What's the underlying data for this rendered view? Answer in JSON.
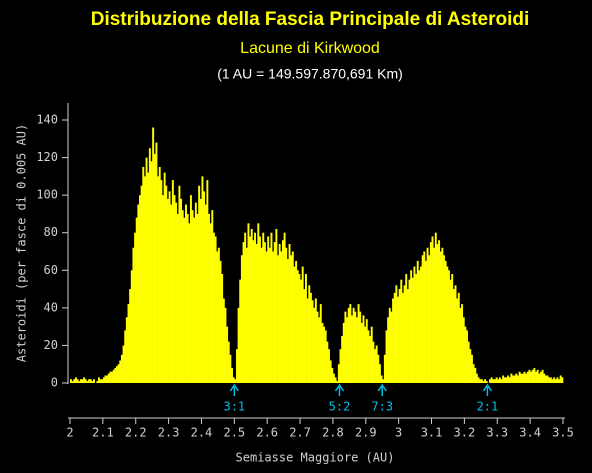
{
  "chart_data": {
    "type": "histogram",
    "title": "Distribuzione della Fascia Principale di Asteroidi",
    "subtitle": "Lacune di Kirkwood",
    "note": "(1 AU = 149.597.870,691 Km)",
    "x_label": "Semiasse Maggiore (AU)",
    "y_label": "Asteroidi (per fasce di 0.005 AU)",
    "color": "#ffff00",
    "bins": [
      2,
      2.005,
      2.01,
      2.015,
      2.02,
      2.025,
      2.03,
      2.035,
      2.04,
      2.045,
      2.05,
      2.055,
      2.06,
      2.065,
      2.07,
      2.075,
      2.08,
      2.085,
      2.09,
      2.095,
      2.1,
      2.105,
      2.11,
      2.115,
      2.12,
      2.125,
      2.13,
      2.135,
      2.14,
      2.145,
      2.15,
      2.155,
      2.16,
      2.165,
      2.17,
      2.175,
      2.18,
      2.185,
      2.19,
      2.195,
      2.2,
      2.205,
      2.21,
      2.215,
      2.22,
      2.225,
      2.23,
      2.235,
      2.24,
      2.245,
      2.25,
      2.255,
      2.26,
      2.265,
      2.27,
      2.275,
      2.28,
      2.285,
      2.29,
      2.295,
      2.3,
      2.305,
      2.31,
      2.315,
      2.32,
      2.325,
      2.33,
      2.335,
      2.34,
      2.345,
      2.35,
      2.355,
      2.36,
      2.365,
      2.37,
      2.375,
      2.38,
      2.385,
      2.39,
      2.395,
      2.4,
      2.405,
      2.41,
      2.415,
      2.42,
      2.425,
      2.43,
      2.435,
      2.44,
      2.445,
      2.45,
      2.455,
      2.46,
      2.465,
      2.47,
      2.475,
      2.48,
      2.485,
      2.49,
      2.495,
      2.5,
      2.505,
      2.51,
      2.515,
      2.52,
      2.525,
      2.53,
      2.535,
      2.54,
      2.545,
      2.55,
      2.555,
      2.56,
      2.565,
      2.57,
      2.575,
      2.58,
      2.585,
      2.59,
      2.595,
      2.6,
      2.605,
      2.61,
      2.615,
      2.62,
      2.625,
      2.63,
      2.635,
      2.64,
      2.645,
      2.65,
      2.655,
      2.66,
      2.665,
      2.67,
      2.675,
      2.68,
      2.685,
      2.69,
      2.695,
      2.7,
      2.705,
      2.71,
      2.715,
      2.72,
      2.725,
      2.73,
      2.735,
      2.74,
      2.745,
      2.75,
      2.755,
      2.76,
      2.765,
      2.77,
      2.775,
      2.78,
      2.785,
      2.79,
      2.795,
      2.8,
      2.805,
      2.81,
      2.815,
      2.82,
      2.825,
      2.83,
      2.835,
      2.84,
      2.845,
      2.85,
      2.855,
      2.86,
      2.865,
      2.87,
      2.875,
      2.88,
      2.885,
      2.89,
      2.895,
      2.9,
      2.905,
      2.91,
      2.915,
      2.92,
      2.925,
      2.93,
      2.935,
      2.94,
      2.945,
      2.95,
      2.955,
      2.96,
      2.965,
      2.97,
      2.975,
      2.98,
      2.985,
      2.99,
      2.995,
      3,
      3.005,
      3.01,
      3.015,
      3.02,
      3.025,
      3.03,
      3.035,
      3.04,
      3.045,
      3.05,
      3.055,
      3.06,
      3.065,
      3.07,
      3.075,
      3.08,
      3.085,
      3.09,
      3.095,
      3.1,
      3.105,
      3.11,
      3.115,
      3.12,
      3.125,
      3.13,
      3.135,
      3.14,
      3.145,
      3.15,
      3.155,
      3.16,
      3.165,
      3.17,
      3.175,
      3.18,
      3.185,
      3.19,
      3.195,
      3.2,
      3.205,
      3.21,
      3.215,
      3.22,
      3.225,
      3.23,
      3.235,
      3.24,
      3.245,
      3.25,
      3.255,
      3.26,
      3.265,
      3.27,
      3.275,
      3.28,
      3.285,
      3.29,
      3.295,
      3.3,
      3.305,
      3.31,
      3.315,
      3.32,
      3.325,
      3.33,
      3.335,
      3.34,
      3.345,
      3.35,
      3.355,
      3.36,
      3.365,
      3.37,
      3.375,
      3.38,
      3.385,
      3.39,
      3.395,
      3.4,
      3.405,
      3.41,
      3.415,
      3.42,
      3.425,
      3.43,
      3.435,
      3.44,
      3.445,
      3.45,
      3.455,
      3.46,
      3.465,
      3.47,
      3.475,
      3.48,
      3.485,
      3.49,
      3.495,
      3.5
    ],
    "values": [
      2,
      1,
      2,
      3,
      2,
      1,
      2,
      2,
      3,
      2,
      1,
      2,
      2,
      1,
      2,
      0,
      1,
      3,
      2,
      2,
      3,
      4,
      4,
      5,
      6,
      6,
      7,
      8,
      9,
      10,
      12,
      15,
      20,
      28,
      35,
      42,
      50,
      60,
      72,
      80,
      88,
      95,
      100,
      105,
      115,
      110,
      120,
      112,
      125,
      118,
      136,
      122,
      128,
      110,
      115,
      108,
      100,
      112,
      105,
      98,
      102,
      95,
      108,
      100,
      96,
      90,
      105,
      98,
      92,
      88,
      95,
      90,
      85,
      100,
      92,
      88,
      96,
      90,
      105,
      98,
      110,
      102,
      95,
      108,
      90,
      85,
      92,
      80,
      78,
      70,
      72,
      65,
      58,
      45,
      40,
      30,
      22,
      15,
      8,
      3,
      2,
      18,
      40,
      55,
      68,
      75,
      80,
      72,
      85,
      78,
      82,
      76,
      80,
      74,
      85,
      78,
      72,
      80,
      75,
      70,
      78,
      72,
      80,
      70,
      75,
      82,
      68,
      74,
      70,
      76,
      80,
      72,
      66,
      74,
      68,
      70,
      62,
      65,
      60,
      58,
      55,
      62,
      50,
      58,
      45,
      52,
      48,
      44,
      40,
      45,
      38,
      35,
      42,
      32,
      30,
      28,
      22,
      18,
      12,
      8,
      5,
      3,
      1,
      10,
      18,
      25,
      32,
      38,
      35,
      40,
      42,
      36,
      40,
      38,
      35,
      42,
      38,
      32,
      36,
      30,
      34,
      28,
      25,
      30,
      22,
      18,
      20,
      15,
      10,
      4,
      2,
      15,
      28,
      35,
      40,
      38,
      45,
      48,
      52,
      46,
      50,
      55,
      48,
      52,
      58,
      50,
      55,
      60,
      56,
      62,
      58,
      65,
      60,
      62,
      68,
      70,
      65,
      72,
      68,
      75,
      78,
      72,
      80,
      74,
      76,
      70,
      72,
      68,
      65,
      62,
      60,
      55,
      58,
      50,
      52,
      45,
      48,
      40,
      42,
      35,
      30,
      28,
      22,
      18,
      15,
      10,
      8,
      5,
      3,
      2,
      2,
      1,
      2,
      1,
      0,
      2,
      3,
      2,
      2,
      3,
      2,
      3,
      2,
      4,
      3,
      3,
      4,
      3,
      5,
      4,
      4,
      5,
      4,
      6,
      5,
      5,
      6,
      5,
      6,
      7,
      6,
      7,
      8,
      6,
      7,
      5,
      6,
      7,
      5,
      4,
      4,
      3,
      3,
      2,
      3,
      2,
      3,
      2,
      4,
      3
    ],
    "xlim": [
      2,
      3.5
    ],
    "xticks": [
      2,
      2.1,
      2.2,
      2.3,
      2.4,
      2.5,
      2.6,
      2.7,
      2.8,
      2.9,
      3,
      3.1,
      3.2,
      3.3,
      3.4,
      3.5
    ],
    "ylim": [
      0,
      140
    ],
    "yticks": [
      0,
      20,
      40,
      60,
      80,
      100,
      120,
      140
    ],
    "annotations": [
      {
        "x": 2.5,
        "label": "3:1"
      },
      {
        "x": 2.82,
        "label": "5:2"
      },
      {
        "x": 2.95,
        "label": "7:3"
      },
      {
        "x": 3.27,
        "label": "2:1"
      }
    ],
    "annotation_color": "#00bfe8"
  }
}
